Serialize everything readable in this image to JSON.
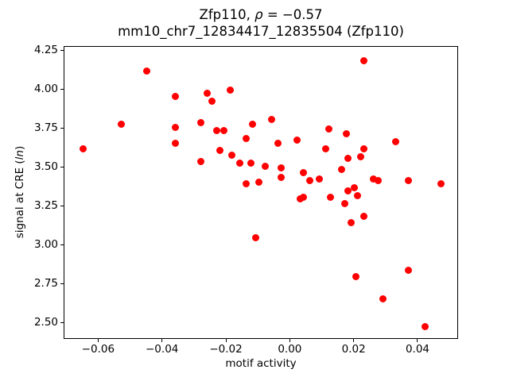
{
  "figure": {
    "title_line1": {
      "prefix": "Zfp110, ",
      "rho": "ρ",
      "suffix": " = −0.57"
    },
    "title_line2": "mm10_chr7_12834417_12835504 (Zfp110)",
    "xlabel": "motif activity",
    "ylabel": {
      "prefix": "signal at CRE (",
      "italic": "ln",
      "suffix": ")"
    }
  },
  "chart_data": {
    "type": "scatter",
    "title": "Zfp110, ρ = −0.57",
    "subtitle": "mm10_chr7_12834417_12835504 (Zfp110)",
    "xlabel": "motif activity",
    "ylabel": "signal at CRE (ln)",
    "correlation_rho": -0.57,
    "marker_color": "#ff0000",
    "grid": false,
    "legend": null,
    "xlim": [
      -0.0708,
      0.0527
    ],
    "ylim": [
      2.395,
      4.279
    ],
    "xticks": [
      -0.06,
      -0.04,
      -0.02,
      0.0,
      0.02,
      0.04
    ],
    "xtick_labels": [
      "−0.06",
      "−0.04",
      "−0.02",
      "0.00",
      "0.02",
      "0.04"
    ],
    "yticks": [
      2.5,
      2.75,
      3.0,
      3.25,
      3.5,
      3.75,
      4.0,
      4.25
    ],
    "ytick_labels": [
      "2.50",
      "2.75",
      "3.00",
      "3.25",
      "3.50",
      "3.75",
      "4.00",
      "4.25"
    ],
    "points": [
      [
        -0.065,
        3.62
      ],
      [
        -0.053,
        3.78
      ],
      [
        -0.045,
        4.12
      ],
      [
        -0.036,
        3.96
      ],
      [
        -0.036,
        3.76
      ],
      [
        -0.036,
        3.66
      ],
      [
        -0.028,
        3.79
      ],
      [
        -0.028,
        3.54
      ],
      [
        -0.026,
        3.98
      ],
      [
        -0.0245,
        3.93
      ],
      [
        -0.023,
        3.74
      ],
      [
        -0.022,
        3.61
      ],
      [
        -0.021,
        3.74
      ],
      [
        -0.019,
        4.0
      ],
      [
        -0.0185,
        3.58
      ],
      [
        -0.016,
        3.53
      ],
      [
        -0.014,
        3.69
      ],
      [
        -0.014,
        3.4
      ],
      [
        -0.0125,
        3.53
      ],
      [
        -0.012,
        3.78
      ],
      [
        -0.011,
        3.05
      ],
      [
        -0.01,
        3.41
      ],
      [
        -0.008,
        3.51
      ],
      [
        -0.006,
        3.81
      ],
      [
        -0.004,
        3.66
      ],
      [
        -0.003,
        3.5
      ],
      [
        -0.003,
        3.44
      ],
      [
        0.002,
        3.68
      ],
      [
        0.003,
        3.3
      ],
      [
        0.004,
        3.47
      ],
      [
        0.004,
        3.31
      ],
      [
        0.006,
        3.42
      ],
      [
        0.009,
        3.43
      ],
      [
        0.011,
        3.62
      ],
      [
        0.012,
        3.75
      ],
      [
        0.0125,
        3.31
      ],
      [
        0.016,
        3.49
      ],
      [
        0.017,
        3.27
      ],
      [
        0.0175,
        3.72
      ],
      [
        0.018,
        3.56
      ],
      [
        0.018,
        3.35
      ],
      [
        0.019,
        3.15
      ],
      [
        0.02,
        3.37
      ],
      [
        0.0205,
        2.8
      ],
      [
        0.021,
        3.32
      ],
      [
        0.022,
        3.57
      ],
      [
        0.023,
        4.19
      ],
      [
        0.023,
        3.62
      ],
      [
        0.023,
        3.19
      ],
      [
        0.026,
        3.43
      ],
      [
        0.0275,
        3.42
      ],
      [
        0.029,
        2.66
      ],
      [
        0.033,
        3.67
      ],
      [
        0.037,
        3.42
      ],
      [
        0.037,
        2.84
      ],
      [
        0.042,
        2.48
      ],
      [
        0.047,
        3.4
      ]
    ]
  }
}
